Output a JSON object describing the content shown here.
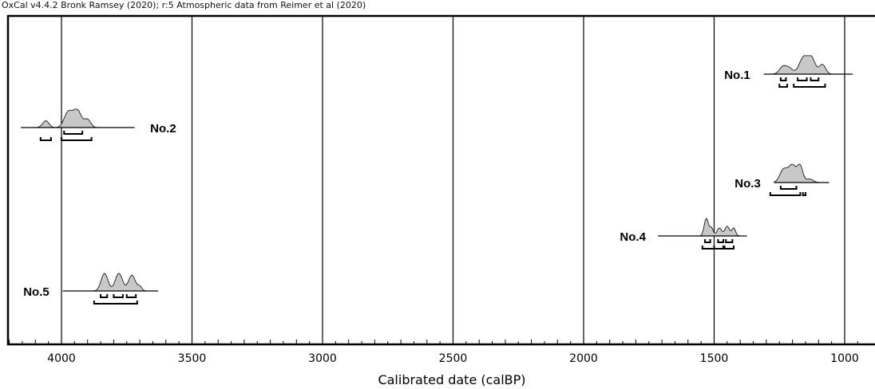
{
  "header": "OxCal v4.4.2 Bronk Ramsey (2020); r:5 Atmospheric data from Reimer et al (2020)",
  "chart_data": {
    "type": "calibration",
    "xlabel": "Calibrated date (calBP)",
    "xlim": [
      4200,
      950
    ],
    "x_reversed": true,
    "xticks": [
      4000,
      3500,
      3000,
      2500,
      2000,
      1500,
      1000
    ],
    "minor_tick_interval": 50,
    "grid": "vertical lines at major ticks",
    "fill_color": "#c8c8c8",
    "samples": [
      {
        "name": "No.1",
        "label_side": "left",
        "line": [
          1310,
          970
        ],
        "peaks": [
          {
            "x": 1235,
            "h": 0.45,
            "w": 14
          },
          {
            "x": 1210,
            "h": 0.28,
            "w": 12
          },
          {
            "x": 1155,
            "h": 1.0,
            "w": 18
          },
          {
            "x": 1125,
            "h": 0.75,
            "w": 14
          },
          {
            "x": 1085,
            "h": 0.55,
            "w": 12
          }
        ],
        "range_68": [
          [
            1245,
            1225
          ],
          [
            1180,
            1145
          ],
          [
            1130,
            1100
          ]
        ],
        "range_95": [
          [
            1250,
            1220
          ],
          [
            1195,
            1075
          ]
        ]
      },
      {
        "name": "No.2",
        "label_side": "right",
        "line": [
          4155,
          3720
        ],
        "peaks": [
          {
            "x": 4060,
            "h": 0.38,
            "w": 12
          },
          {
            "x": 3975,
            "h": 0.85,
            "w": 15
          },
          {
            "x": 3940,
            "h": 1.0,
            "w": 16
          },
          {
            "x": 3900,
            "h": 0.45,
            "w": 12
          }
        ],
        "range_68": [
          [
            3990,
            3920
          ]
        ],
        "range_95": [
          [
            4080,
            4040
          ],
          [
            4000,
            3885
          ]
        ]
      },
      {
        "name": "No.3",
        "label_side": "left",
        "line": [
          1270,
          1060
        ],
        "peaks": [
          {
            "x": 1235,
            "h": 0.7,
            "w": 14
          },
          {
            "x": 1200,
            "h": 1.0,
            "w": 16
          },
          {
            "x": 1170,
            "h": 0.85,
            "w": 10
          },
          {
            "x": 1135,
            "h": 0.2,
            "w": 14
          }
        ],
        "range_68": [
          [
            1245,
            1185
          ]
        ],
        "range_95": [
          [
            1285,
            1170
          ],
          [
            1160,
            1150
          ]
        ]
      },
      {
        "name": "No.4",
        "label_side": "left",
        "line": [
          1715,
          1375
        ],
        "peaks": [
          {
            "x": 1530,
            "h": 1.0,
            "w": 8
          },
          {
            "x": 1510,
            "h": 0.45,
            "w": 7
          },
          {
            "x": 1480,
            "h": 0.45,
            "w": 9
          },
          {
            "x": 1450,
            "h": 0.55,
            "w": 9
          },
          {
            "x": 1425,
            "h": 0.45,
            "w": 7
          }
        ],
        "range_68": [
          [
            1535,
            1515
          ],
          [
            1485,
            1465
          ],
          [
            1455,
            1430
          ]
        ],
        "range_95": [
          [
            1545,
            1500
          ],
          [
            1500,
            1465
          ],
          [
            1460,
            1425
          ]
        ]
      },
      {
        "name": "No.5",
        "label_side": "left",
        "line": [
          3995,
          3630
        ],
        "peaks": [
          {
            "x": 3835,
            "h": 1.0,
            "w": 13
          },
          {
            "x": 3780,
            "h": 1.0,
            "w": 14
          },
          {
            "x": 3730,
            "h": 0.9,
            "w": 13
          },
          {
            "x": 3700,
            "h": 0.25,
            "w": 8
          }
        ],
        "range_68": [
          [
            3850,
            3825
          ],
          [
            3800,
            3765
          ],
          [
            3750,
            3715
          ]
        ],
        "range_95": [
          [
            3875,
            3710
          ]
        ]
      }
    ]
  }
}
